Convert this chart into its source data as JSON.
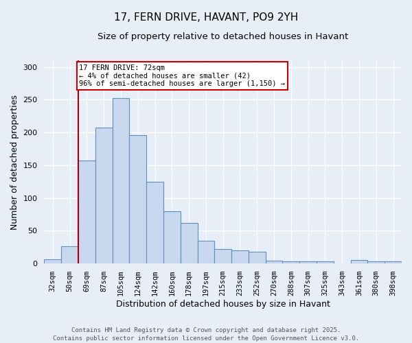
{
  "title_line1": "17, FERN DRIVE, HAVANT, PO9 2YH",
  "title_line2": "Size of property relative to detached houses in Havant",
  "xlabel": "Distribution of detached houses by size in Havant",
  "ylabel": "Number of detached properties",
  "categories": [
    "32sqm",
    "50sqm",
    "69sqm",
    "87sqm",
    "105sqm",
    "124sqm",
    "142sqm",
    "160sqm",
    "178sqm",
    "197sqm",
    "215sqm",
    "233sqm",
    "252sqm",
    "270sqm",
    "288sqm",
    "307sqm",
    "325sqm",
    "343sqm",
    "361sqm",
    "380sqm",
    "398sqm"
  ],
  "values": [
    7,
    26,
    157,
    207,
    252,
    196,
    125,
    80,
    62,
    35,
    22,
    20,
    18,
    4,
    3,
    3,
    3,
    0,
    5,
    3,
    3
  ],
  "bar_color": "#c8d9ef",
  "bar_edge_color": "#5a8fc0",
  "vline_index": 2,
  "vline_color": "#aa0000",
  "annotation_text": "17 FERN DRIVE: 72sqm\n← 4% of detached houses are smaller (42)\n96% of semi-detached houses are larger (1,150) →",
  "annotation_box_color": "#ffffff",
  "annotation_box_edge_color": "#cc0000",
  "ylim": [
    0,
    310
  ],
  "yticks": [
    0,
    50,
    100,
    150,
    200,
    250,
    300
  ],
  "footnote": "Contains HM Land Registry data © Crown copyright and database right 2025.\nContains public sector information licensed under the Open Government Licence v3.0.",
  "background_color": "#e8eef8",
  "grid_color": "#ffffff",
  "title_fontsize": 11,
  "subtitle_fontsize": 9.5,
  "tick_fontsize": 7.5,
  "label_fontsize": 9,
  "footnote_fontsize": 6.5
}
